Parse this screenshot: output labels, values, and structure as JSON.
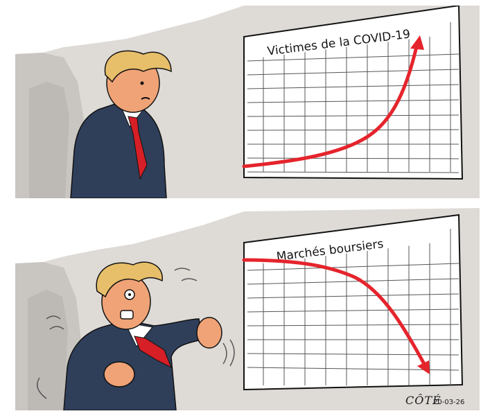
{
  "panels": [
    {
      "chart_title": "Victimes de la COVID-19",
      "trend": "up"
    },
    {
      "chart_title": "Marchés boursiers",
      "trend": "down"
    }
  ],
  "signature": {
    "artist": "CÔTÉ",
    "date": "20-03-26"
  },
  "colors": {
    "curve": "#e5242c",
    "suit": "#2f3f5a",
    "tie": "#d61f26",
    "hair": "#e7bf6a",
    "skin": "#f0a376",
    "wall": "#d9d6d2",
    "grid": "#4a4a4a"
  }
}
